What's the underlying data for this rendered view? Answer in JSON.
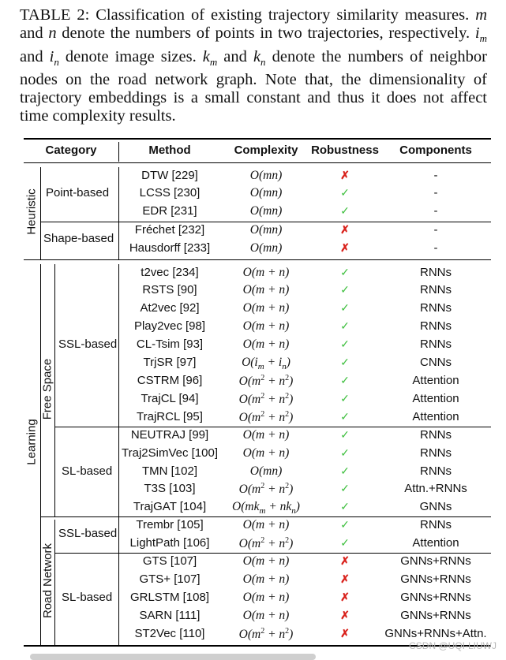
{
  "caption": {
    "label": "TABLE 2:",
    "text_parts": [
      " Classification of existing trajectory similarity measures. ",
      "m",
      " and ",
      "n",
      " denote the numbers of points in two trajectories, respectively. ",
      "i",
      "m",
      " and ",
      "i",
      "n",
      " denote image sizes. ",
      "k",
      "m",
      " and ",
      "k",
      "n",
      " denote the numbers of neighbor nodes on the road network graph. Note that, the dimensionality of trajectory embeddings is a small constant and thus it does not affect time complexity results."
    ]
  },
  "headers": [
    "Category",
    "Method",
    "Complexity",
    "Robustness",
    "Components"
  ],
  "groups": {
    "heuristic": "Heuristic",
    "learning": "Learning",
    "free_space": "Free Space",
    "road_network": "Road Network",
    "point_based": "Point-based",
    "shape_based": "Shape-based",
    "fs_ssl": "SSL-based",
    "fs_sl": "SL-based",
    "rn_ssl": "SSL-based",
    "rn_sl": "SL-based"
  },
  "rows": [
    {
      "method": "DTW [229]",
      "complexity": "O(mn)",
      "robust": false,
      "components": "-"
    },
    {
      "method": "LCSS [230]",
      "complexity": "O(mn)",
      "robust": true,
      "components": "-"
    },
    {
      "method": "EDR [231]",
      "complexity": "O(mn)",
      "robust": true,
      "components": "-"
    },
    {
      "method": "Fréchet [232]",
      "complexity": "O(mn)",
      "robust": false,
      "components": "-"
    },
    {
      "method": "Hausdorff [233]",
      "complexity": "O(mn)",
      "robust": false,
      "components": "-"
    },
    {
      "method": "t2vec [234]",
      "complexity": "O(m + n)",
      "robust": true,
      "components": "RNNs"
    },
    {
      "method": "RSTS [90]",
      "complexity": "O(m + n)",
      "robust": true,
      "components": "RNNs"
    },
    {
      "method": "At2vec [92]",
      "complexity": "O(m + n)",
      "robust": true,
      "components": "RNNs"
    },
    {
      "method": "Play2vec [98]",
      "complexity": "O(m + n)",
      "robust": true,
      "components": "RNNs"
    },
    {
      "method": "CL-Tsim [93]",
      "complexity": "O(m + n)",
      "robust": true,
      "components": "RNNs"
    },
    {
      "method": "TrjSR [97]",
      "complexity": "O(i_m + i_n)",
      "robust": true,
      "components": "CNNs"
    },
    {
      "method": "CSTRM [96]",
      "complexity": "O(m^2 + n^2)",
      "robust": true,
      "components": "Attention"
    },
    {
      "method": "TrajCL [94]",
      "complexity": "O(m^2 + n^2)",
      "robust": true,
      "components": "Attention"
    },
    {
      "method": "TrajRCL [95]",
      "complexity": "O(m^2 + n^2)",
      "robust": true,
      "components": "Attention"
    },
    {
      "method": "NEUTRAJ [99]",
      "complexity": "O(m + n)",
      "robust": true,
      "components": "RNNs"
    },
    {
      "method": "Traj2SimVec [100]",
      "complexity": "O(m + n)",
      "robust": true,
      "components": "RNNs"
    },
    {
      "method": "TMN [102]",
      "complexity": "O(mn)",
      "robust": true,
      "components": "RNNs"
    },
    {
      "method": "T3S [103]",
      "complexity": "O(m^2 + n^2)",
      "robust": true,
      "components": "Attn.+RNNs"
    },
    {
      "method": "TrajGAT [104]",
      "complexity": "O(mk_m + nk_n)",
      "robust": true,
      "components": "GNNs"
    },
    {
      "method": "Trembr [105]",
      "complexity": "O(m + n)",
      "robust": true,
      "components": "RNNs"
    },
    {
      "method": "LightPath [106]",
      "complexity": "O(m^2 + n^2)",
      "robust": true,
      "components": "Attention"
    },
    {
      "method": "GTS [107]",
      "complexity": "O(m + n)",
      "robust": false,
      "components": "GNNs+RNNs"
    },
    {
      "method": "GTS+ [107]",
      "complexity": "O(m + n)",
      "robust": false,
      "components": "GNNs+RNNs"
    },
    {
      "method": "GRLSTM [108]",
      "complexity": "O(m + n)",
      "robust": false,
      "components": "GNNs+RNNs"
    },
    {
      "method": "SARN [111]",
      "complexity": "O(m + n)",
      "robust": false,
      "components": "GNNs+RNNs"
    },
    {
      "method": "ST2Vec [110]",
      "complexity": "O(m^2 + n^2)",
      "robust": false,
      "components": "GNNs+RNNs+Attn."
    }
  ],
  "symbols": {
    "check": "✓",
    "cross": "✗"
  },
  "colors": {
    "check": "#3fbf3f",
    "cross": "#d9221c"
  },
  "watermark": "CSDN @UQI-LIUWJ"
}
